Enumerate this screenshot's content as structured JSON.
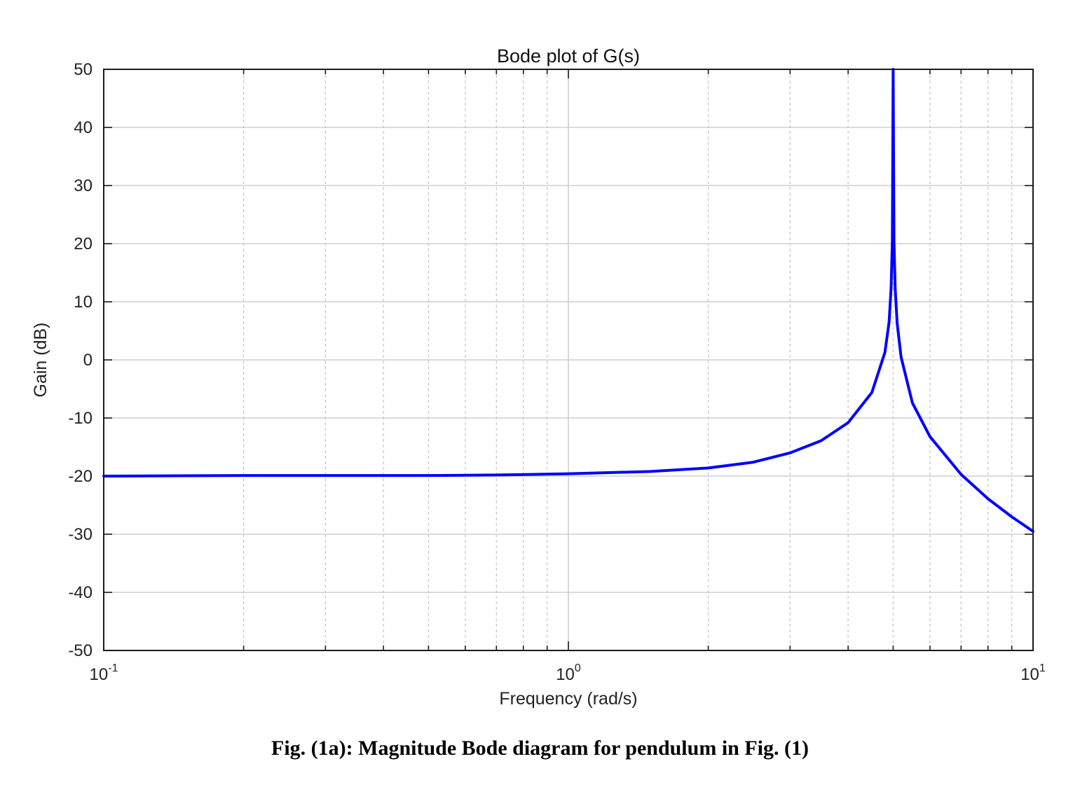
{
  "chart_data": {
    "type": "line",
    "title": "Bode plot of G(s)",
    "xlabel": "Frequency (rad/s)",
    "ylabel": "Gain (dB)",
    "xscale": "log",
    "xlim": [
      0.1,
      10
    ],
    "ylim": [
      -50,
      50
    ],
    "xticks": [
      {
        "value": 0.1,
        "base": "10",
        "exp": "-1"
      },
      {
        "value": 1,
        "base": "10",
        "exp": "0"
      },
      {
        "value": 10,
        "base": "10",
        "exp": "1"
      }
    ],
    "yticks": [
      -50,
      -40,
      -30,
      -20,
      -10,
      0,
      10,
      20,
      30,
      40,
      50
    ],
    "grid": true,
    "line_color": "#0000ff",
    "series": [
      {
        "x": [
          0.1,
          0.2,
          0.3,
          0.5,
          0.7,
          1.0,
          1.5,
          2.0,
          2.5,
          3.0,
          3.5,
          4.0,
          4.5,
          4.8,
          4.9,
          4.95,
          4.98,
          5.0,
          5.02,
          5.05,
          5.1,
          5.2,
          5.5,
          6.0,
          7.0,
          8.0,
          9.0,
          10.0
        ],
        "y": [
          -20.0,
          -19.9,
          -19.9,
          -19.9,
          -19.8,
          -19.6,
          -19.2,
          -18.6,
          -17.6,
          -16.0,
          -13.9,
          -10.8,
          -5.6,
          1.3,
          6.5,
          12.5,
          20.5,
          50,
          20.5,
          12.3,
          6.3,
          0.5,
          -7.4,
          -13.2,
          -19.7,
          -23.9,
          -27.0,
          -29.5
        ]
      }
    ]
  },
  "caption": "Fig. (1a): Magnitude Bode diagram for pendulum in Fig. (1)"
}
